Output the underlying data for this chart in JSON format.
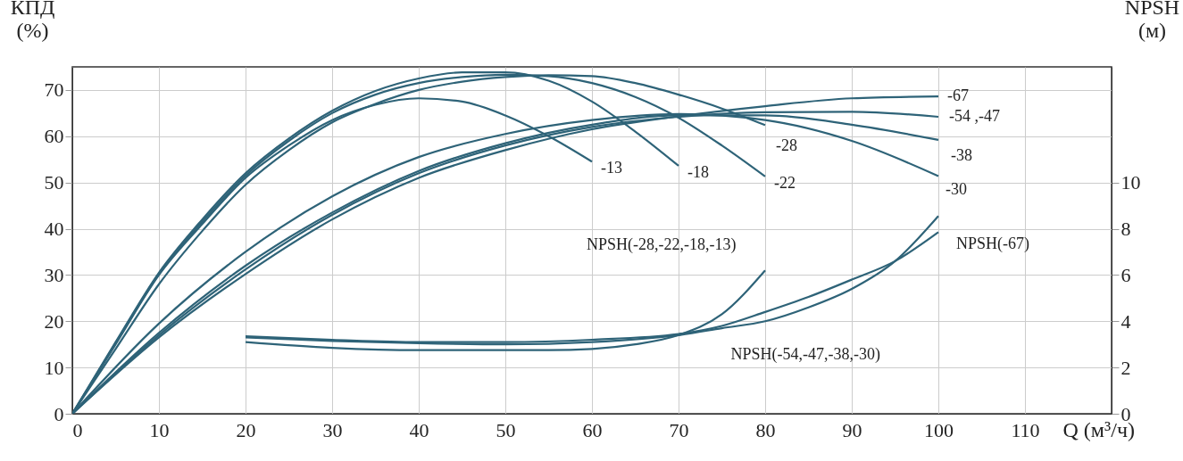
{
  "chart_data": {
    "type": "line",
    "xlabel": "Q (м³/ч)",
    "ylabel": "КПД (%)",
    "y2label": "NPSH (м)",
    "xlim": [
      0,
      120
    ],
    "xticks": [
      0,
      10,
      20,
      30,
      40,
      50,
      60,
      70,
      80,
      90,
      100,
      110
    ],
    "ylim": [
      0,
      75
    ],
    "yticks": [
      0,
      10,
      20,
      30,
      40,
      50,
      60,
      70
    ],
    "y2lim": [
      0,
      15
    ],
    "y2ticks": [
      0,
      2,
      4,
      6,
      8,
      10
    ],
    "grid": true,
    "legend": false,
    "marker": "none",
    "line_style": "solid",
    "series": [
      {
        "name": "-13",
        "color": "#2e6378",
        "x": [
          0,
          5,
          10,
          15,
          20,
          25,
          30,
          35,
          40,
          45,
          50,
          55,
          60
        ],
        "values": [
          0,
          15,
          30,
          41,
          51,
          58,
          63.5,
          66.8,
          68.2,
          67.5,
          64.5,
          60,
          54.5
        ]
      },
      {
        "name": "-18",
        "color": "#2e6378",
        "x": [
          0,
          5,
          10,
          15,
          20,
          25,
          30,
          35,
          40,
          45,
          50,
          55,
          60,
          65,
          70
        ],
        "values": [
          0,
          15.5,
          30.5,
          42,
          52,
          59.5,
          65.5,
          69.8,
          72.5,
          73.8,
          73.8,
          72,
          67.5,
          61,
          53.6
        ]
      },
      {
        "name": "-22",
        "color": "#2e6378",
        "x": [
          0,
          5,
          10,
          15,
          20,
          25,
          30,
          35,
          40,
          45,
          50,
          55,
          60,
          65,
          70,
          75,
          80
        ],
        "values": [
          0,
          15.3,
          30.2,
          41.5,
          51.5,
          59,
          65,
          69,
          71.5,
          72.8,
          73.3,
          73,
          71.5,
          68.5,
          64,
          58,
          51.3
        ]
      },
      {
        "name": "-28",
        "color": "#2e6378",
        "x": [
          0,
          5,
          10,
          15,
          20,
          25,
          30,
          35,
          40,
          45,
          50,
          55,
          60,
          65,
          70,
          75,
          80
        ],
        "values": [
          0,
          14,
          28,
          39.5,
          49.5,
          57,
          63,
          67,
          70,
          71.8,
          72.8,
          73.2,
          73,
          71.5,
          69,
          66,
          62.4
        ]
      },
      {
        "name": "-67",
        "color": "#2e6378",
        "x": [
          0,
          10,
          20,
          30,
          40,
          50,
          60,
          70,
          80,
          90,
          100
        ],
        "values": [
          0,
          16.5,
          30.2,
          42,
          51,
          57,
          61.5,
          64.3,
          66.5,
          68.2,
          68.6
        ]
      },
      {
        "name": "-54 ,-47",
        "color": "#2e6378",
        "x": [
          0,
          10,
          20,
          30,
          40,
          50,
          60,
          70,
          80,
          90,
          100
        ],
        "values": [
          0,
          17,
          31.2,
          43,
          52,
          58,
          62,
          64.2,
          65.2,
          65.3,
          64.2
        ]
      },
      {
        "name": "-38",
        "color": "#2e6378",
        "x": [
          0,
          10,
          20,
          30,
          40,
          50,
          60,
          70,
          80,
          90,
          100
        ],
        "values": [
          0,
          17.5,
          32,
          43.5,
          52.5,
          58.5,
          62.5,
          64.5,
          64.5,
          62.5,
          59.2
        ]
      },
      {
        "name": "-30",
        "color": "#2e6378",
        "x": [
          0,
          10,
          20,
          30,
          40,
          50,
          60,
          70,
          80,
          90,
          100
        ],
        "values": [
          0,
          19.5,
          35,
          47,
          55.5,
          60.5,
          63.5,
          64.8,
          63.5,
          59,
          51.4
        ]
      },
      {
        "name": "NPSH(-28,-22,-18,-13)",
        "color": "#2e6378",
        "axis": "y2",
        "x": [
          20,
          30,
          40,
          50,
          55,
          60,
          65,
          70,
          75,
          80
        ],
        "values": [
          3.1,
          2.85,
          2.75,
          2.75,
          2.75,
          2.8,
          3.0,
          3.4,
          4.3,
          6.2
        ]
      },
      {
        "name": "NPSH(-54,-47,-38,-30)",
        "color": "#2e6378",
        "axis": "y2",
        "x": [
          20,
          30,
          40,
          50,
          60,
          70,
          75,
          80,
          85,
          90,
          95,
          100
        ],
        "values": [
          3.3,
          3.15,
          3.05,
          3.0,
          3.1,
          3.4,
          3.7,
          4.0,
          4.6,
          5.4,
          6.6,
          8.55
        ]
      },
      {
        "name": "NPSH(-67)",
        "color": "#2e6378",
        "axis": "y2",
        "x": [
          20,
          30,
          40,
          50,
          60,
          70,
          75,
          80,
          85,
          90,
          95,
          100
        ],
        "values": [
          3.35,
          3.2,
          3.1,
          3.1,
          3.2,
          3.45,
          3.8,
          4.4,
          5.05,
          5.8,
          6.6,
          7.85
        ]
      }
    ]
  }
}
